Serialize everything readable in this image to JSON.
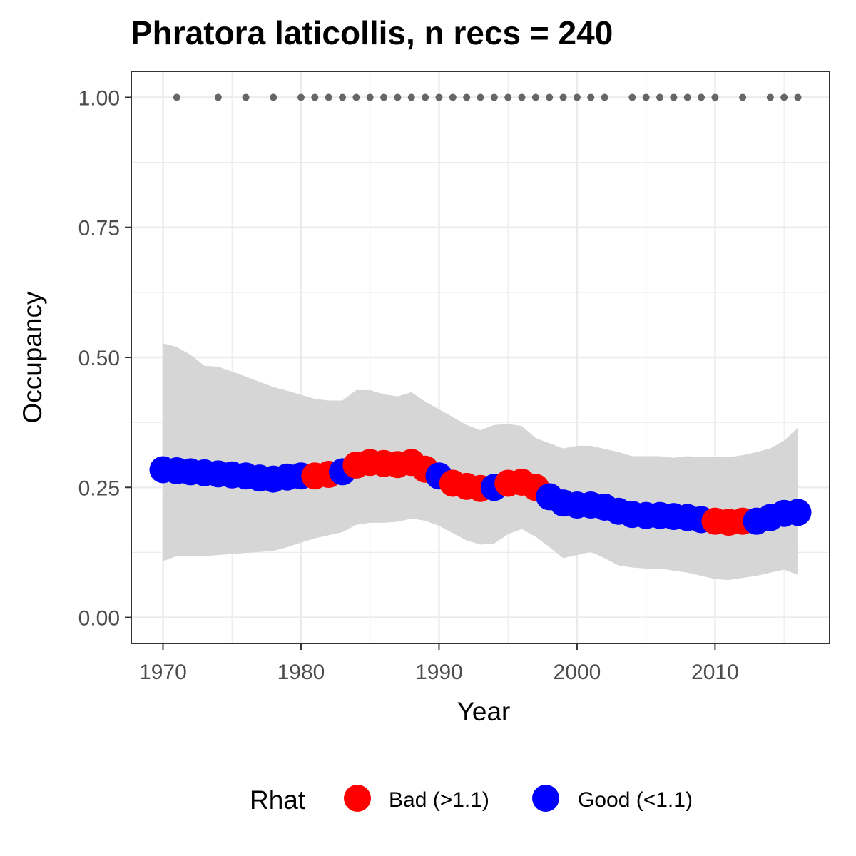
{
  "chart_data": {
    "type": "line",
    "title": "Phratora laticollis, n recs = 240",
    "xlabel": "Year",
    "ylabel": "Occupancy",
    "xlim": [
      1967.7,
      2018.3
    ],
    "ylim": [
      -0.05,
      1.05
    ],
    "x_ticks": [
      1970,
      1980,
      1990,
      2000,
      2010
    ],
    "x_tick_labels": [
      "1970",
      "1980",
      "1990",
      "2000",
      "2010"
    ],
    "y_ticks": [
      0,
      0.25,
      0.5,
      0.75,
      1.0
    ],
    "y_tick_labels": [
      "0.00",
      "0.25",
      "0.50",
      "0.75",
      "1.00"
    ],
    "grid": true,
    "legend": {
      "title": "Rhat",
      "position": "bottom",
      "entries": [
        {
          "label": "Bad (>1.1)",
          "color": "#ff0000"
        },
        {
          "label": "Good (<1.1)",
          "color": "#0000ff"
        }
      ]
    },
    "colors": {
      "bad": "#ff0000",
      "good": "#0000ff",
      "ribbon": "#d6d6d6",
      "record_points": "#666666"
    },
    "years": [
      1970,
      1971,
      1972,
      1973,
      1974,
      1975,
      1976,
      1977,
      1978,
      1979,
      1980,
      1981,
      1982,
      1983,
      1984,
      1985,
      1986,
      1987,
      1988,
      1989,
      1990,
      1991,
      1992,
      1993,
      1994,
      1995,
      1996,
      1997,
      1998,
      1999,
      2000,
      2001,
      2002,
      2003,
      2004,
      2005,
      2006,
      2007,
      2008,
      2009,
      2010,
      2011,
      2012,
      2013,
      2014,
      2015,
      2016
    ],
    "occupancy": [
      0.284,
      0.282,
      0.28,
      0.278,
      0.276,
      0.274,
      0.272,
      0.268,
      0.266,
      0.27,
      0.272,
      0.272,
      0.275,
      0.28,
      0.293,
      0.298,
      0.296,
      0.294,
      0.298,
      0.285,
      0.272,
      0.258,
      0.252,
      0.248,
      0.25,
      0.258,
      0.26,
      0.25,
      0.232,
      0.22,
      0.216,
      0.216,
      0.212,
      0.204,
      0.198,
      0.196,
      0.196,
      0.194,
      0.192,
      0.188,
      0.185,
      0.183,
      0.185,
      0.185,
      0.192,
      0.2,
      0.202
    ],
    "rhat_status": [
      "good",
      "good",
      "good",
      "good",
      "good",
      "good",
      "good",
      "good",
      "good",
      "good",
      "good",
      "bad",
      "bad",
      "good",
      "bad",
      "bad",
      "bad",
      "bad",
      "bad",
      "bad",
      "good",
      "bad",
      "bad",
      "bad",
      "good",
      "bad",
      "bad",
      "bad",
      "good",
      "good",
      "good",
      "good",
      "good",
      "good",
      "good",
      "good",
      "good",
      "good",
      "good",
      "good",
      "bad",
      "bad",
      "bad",
      "good",
      "good",
      "good",
      "good"
    ],
    "upper_ci": [
      0.527,
      0.52,
      0.505,
      0.484,
      0.482,
      0.473,
      0.463,
      0.453,
      0.443,
      0.436,
      0.428,
      0.42,
      0.417,
      0.417,
      0.437,
      0.437,
      0.429,
      0.425,
      0.433,
      0.415,
      0.4,
      0.385,
      0.37,
      0.36,
      0.37,
      0.372,
      0.368,
      0.345,
      0.335,
      0.325,
      0.33,
      0.33,
      0.324,
      0.318,
      0.31,
      0.31,
      0.31,
      0.307,
      0.31,
      0.308,
      0.308,
      0.308,
      0.312,
      0.318,
      0.325,
      0.34,
      0.365
    ],
    "lower_ci": [
      0.108,
      0.118,
      0.118,
      0.118,
      0.12,
      0.122,
      0.124,
      0.126,
      0.128,
      0.135,
      0.144,
      0.152,
      0.158,
      0.164,
      0.178,
      0.182,
      0.182,
      0.184,
      0.19,
      0.186,
      0.176,
      0.162,
      0.148,
      0.14,
      0.142,
      0.16,
      0.17,
      0.155,
      0.135,
      0.114,
      0.12,
      0.126,
      0.114,
      0.1,
      0.096,
      0.094,
      0.094,
      0.09,
      0.086,
      0.08,
      0.074,
      0.072,
      0.076,
      0.08,
      0.086,
      0.092,
      0.082
    ],
    "record_years": [
      1971,
      1974,
      1976,
      1978,
      1980,
      1981,
      1982,
      1983,
      1984,
      1985,
      1986,
      1987,
      1988,
      1989,
      1990,
      1991,
      1992,
      1993,
      1994,
      1995,
      1996,
      1997,
      1998,
      1999,
      2000,
      2001,
      2002,
      2004,
      2005,
      2006,
      2007,
      2008,
      2009,
      2010,
      2012,
      2014,
      2015,
      2016
    ],
    "record_value": 1.0
  }
}
